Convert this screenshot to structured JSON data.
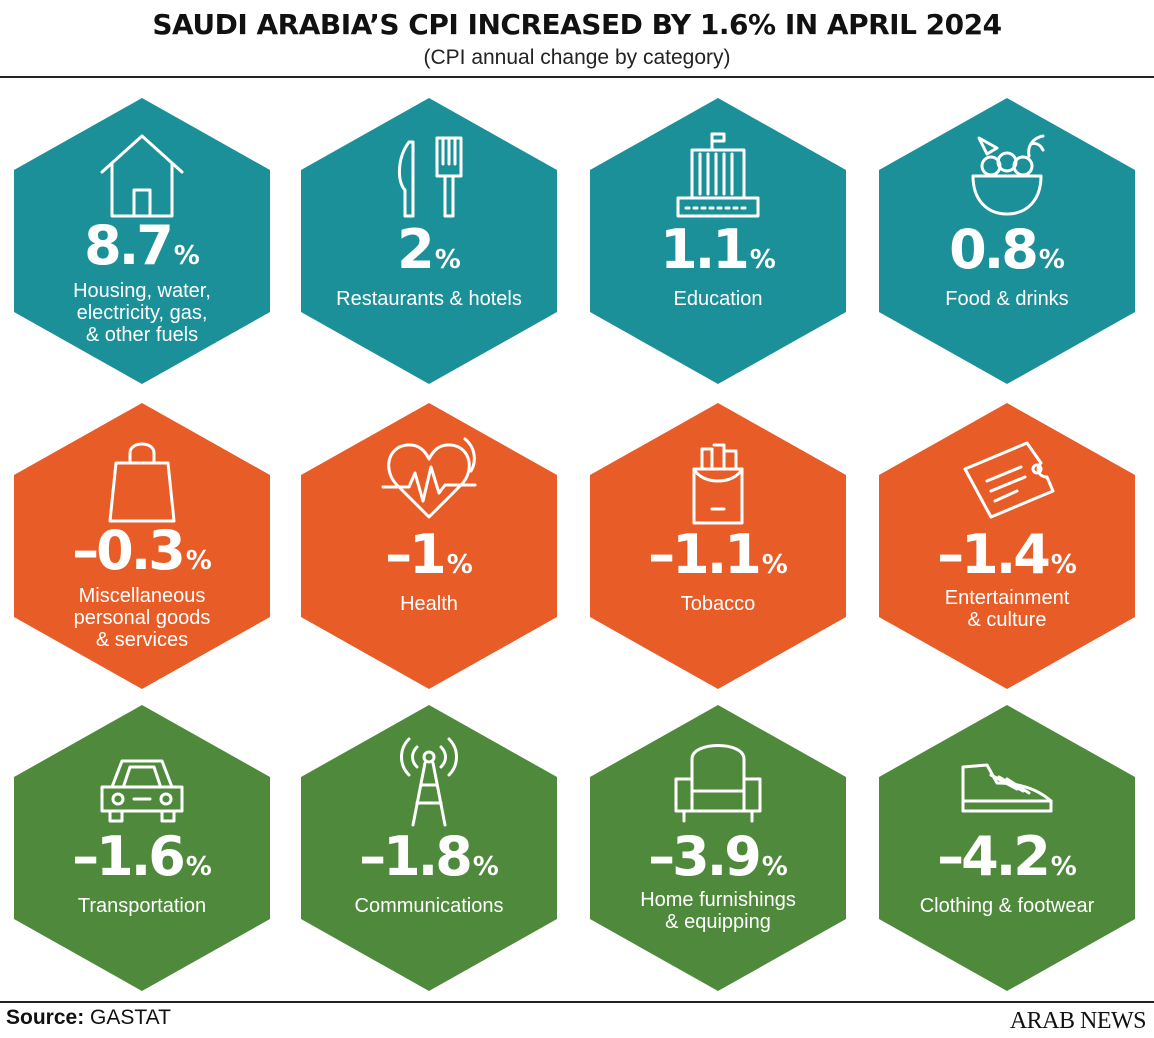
{
  "header": {
    "title": "SAUDI ARABIA’S CPI INCREASED BY 1.6% IN APRIL 2024",
    "subtitle": "(CPI annual change by category)"
  },
  "colors": {
    "positive": "#1c9098",
    "negative": "#e85c27",
    "decline": "#4f8a3c",
    "text": "#ffffff"
  },
  "categories": [
    {
      "id": "housing",
      "value": "8.7",
      "unit": "%",
      "label": "Housing, water,\nelectricity, gas,\n& other fuels",
      "icon": "house-icon",
      "color": "positive"
    },
    {
      "id": "restaurants",
      "value": "2",
      "unit": "%",
      "label": "Restaurants & hotels",
      "icon": "knife-fork-icon",
      "color": "positive"
    },
    {
      "id": "education",
      "value": "1.1",
      "unit": "%",
      "label": "Education",
      "icon": "school-building-icon",
      "color": "positive"
    },
    {
      "id": "food",
      "value": "0.8",
      "unit": "%",
      "label": "Food & drinks",
      "icon": "food-bowl-icon",
      "color": "positive"
    },
    {
      "id": "misc",
      "value": "-0.3",
      "unit": "%",
      "label": "Miscellaneous\npersonal goods\n& services",
      "icon": "shopping-bag-icon",
      "color": "negative"
    },
    {
      "id": "health",
      "value": "-1",
      "unit": "%",
      "label": "Health",
      "icon": "heartbeat-icon",
      "color": "negative"
    },
    {
      "id": "tobacco",
      "value": "-1.1",
      "unit": "%",
      "label": "Tobacco",
      "icon": "cigarette-pack-icon",
      "color": "negative"
    },
    {
      "id": "entertainment",
      "value": "-1.4",
      "unit": "%",
      "label": "Entertainment\n& culture",
      "icon": "ticket-icon",
      "color": "negative"
    },
    {
      "id": "transportation",
      "value": "-1.6",
      "unit": "%",
      "label": "Transportation",
      "icon": "car-icon",
      "color": "decline"
    },
    {
      "id": "communications",
      "value": "-1.8",
      "unit": "%",
      "label": "Communications",
      "icon": "antenna-tower-icon",
      "color": "decline"
    },
    {
      "id": "furnishings",
      "value": "-3.9",
      "unit": "%",
      "label": "Home furnishings\n& equipping",
      "icon": "armchair-icon",
      "color": "decline"
    },
    {
      "id": "clothing",
      "value": "-4.2",
      "unit": "%",
      "label": "Clothing & footwear",
      "icon": "shoe-icon",
      "color": "decline"
    }
  ],
  "footer": {
    "source_label": "Source:",
    "source_value": "GASTAT",
    "brand": "ARAB NEWS"
  }
}
